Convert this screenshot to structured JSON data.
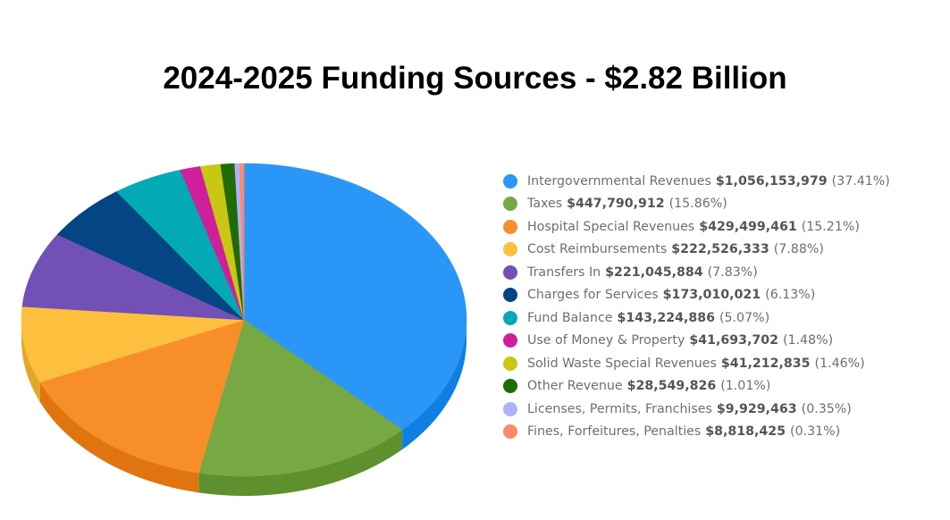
{
  "header": {
    "title": "2024-2025 Funding Sources - $2.82 Billion"
  },
  "chart_data": {
    "type": "pie",
    "title": "2024-2025 Funding Sources - $2.82 Billion",
    "style": "3d-tilted",
    "legend_position": "right",
    "start_angle": "12 o'clock, clockwise",
    "categories": [
      "Intergovernmental Revenues",
      "Taxes",
      "Hospital Special Revenues",
      "Cost Reimbursements",
      "Transfers In",
      "Charges for Services",
      "Fund Balance",
      "Use of Money & Property",
      "Solid Waste Special Revenues",
      "Other Revenue",
      "Licenses, Permits, Franchises",
      "Fines, Forfeitures, Penalties"
    ],
    "values": [
      1056153979,
      447790912,
      429499461,
      222526333,
      221045884,
      173010021,
      143224886,
      41693702,
      41212835,
      28549826,
      9929463,
      8818425
    ],
    "percentages": [
      37.41,
      15.86,
      15.21,
      7.88,
      7.83,
      6.13,
      5.07,
      1.48,
      1.46,
      1.01,
      0.35,
      0.31
    ],
    "colors": [
      "#2a97f8",
      "#76a944",
      "#f88e2a",
      "#fcc03e",
      "#7350b5",
      "#044684",
      "#03a9b4",
      "#cf1f9b",
      "#c7c714",
      "#1f6b06",
      "#adb2fd",
      "#fd8a6d"
    ],
    "side_colors": [
      "#0f80e3",
      "#5e912e",
      "#e07510",
      "#e3a828",
      "#5a3a9a",
      "#02305c",
      "#02888f",
      "#a81580",
      "#a5a50c",
      "#124a02",
      "#8c91e0",
      "#e06c50"
    ]
  },
  "legend": {
    "items": [
      {
        "label": "Intergovernmental Revenues",
        "amount": "$1,056,153,979",
        "percent": "(37.41%)",
        "color": "#2a97f8"
      },
      {
        "label": "Taxes",
        "amount": "$447,790,912",
        "percent": "(15.86%)",
        "color": "#76a944"
      },
      {
        "label": "Hospital Special Revenues",
        "amount": "$429,499,461",
        "percent": "(15.21%)",
        "color": "#f88e2a"
      },
      {
        "label": "Cost Reimbursements",
        "amount": "$222,526,333",
        "percent": "(7.88%)",
        "color": "#fcc03e"
      },
      {
        "label": "Transfers In",
        "amount": "$221,045,884",
        "percent": "(7.83%)",
        "color": "#7350b5"
      },
      {
        "label": "Charges for Services",
        "amount": "$173,010,021",
        "percent": "(6.13%)",
        "color": "#044684"
      },
      {
        "label": "Fund Balance",
        "amount": "$143,224,886",
        "percent": "(5.07%)",
        "color": "#03a9b4"
      },
      {
        "label": "Use of Money & Property",
        "amount": "$41,693,702",
        "percent": "(1.48%)",
        "color": "#cf1f9b"
      },
      {
        "label": "Solid Waste Special Revenues",
        "amount": "$41,212,835",
        "percent": "(1.46%)",
        "color": "#c7c714"
      },
      {
        "label": "Other Revenue",
        "amount": "$28,549,826",
        "percent": "(1.01%)",
        "color": "#1f6b06"
      },
      {
        "label": "Licenses, Permits, Franchises",
        "amount": "$9,929,463",
        "percent": "(0.35%)",
        "color": "#adb2fd"
      },
      {
        "label": "Fines, Forfeitures, Penalties",
        "amount": "$8,818,425",
        "percent": "(0.31%)",
        "color": "#fd8a6d"
      }
    ]
  }
}
